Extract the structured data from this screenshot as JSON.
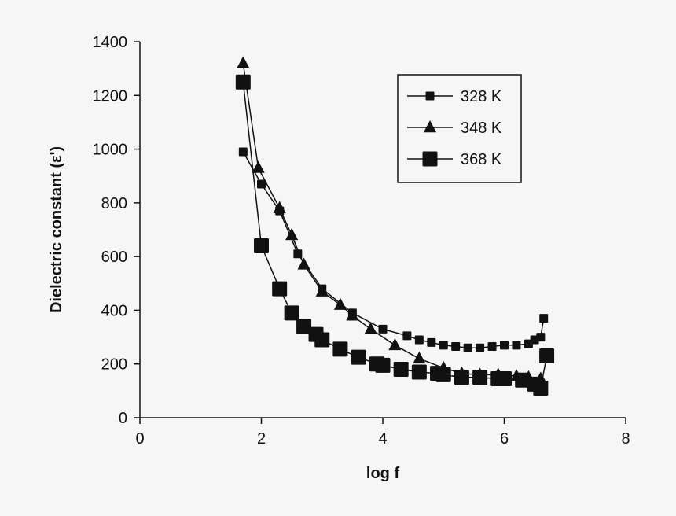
{
  "chart_data": {
    "type": "scatter",
    "title": "",
    "xlabel": "log f",
    "ylabel": "Dielectric constant (ε')",
    "xlim": [
      0,
      8
    ],
    "ylim": [
      0,
      1400
    ],
    "xticks": [
      "0",
      "2",
      "4",
      "6",
      "8"
    ],
    "yticks": [
      "0",
      "200",
      "400",
      "600",
      "800",
      "1000",
      "1200",
      "1400"
    ],
    "legend_position": "top-right",
    "grid": false,
    "series": [
      {
        "name": "328 K",
        "marker": "small-square",
        "x": [
          1.7,
          2.0,
          2.3,
          2.6,
          3.0,
          3.5,
          4.0,
          4.4,
          4.6,
          4.8,
          5.0,
          5.2,
          5.4,
          5.6,
          5.8,
          6.0,
          6.2,
          6.4,
          6.5,
          6.6,
          6.65
        ],
        "y": [
          990,
          870,
          770,
          610,
          480,
          390,
          330,
          305,
          290,
          280,
          270,
          265,
          260,
          260,
          265,
          270,
          270,
          275,
          290,
          300,
          370
        ]
      },
      {
        "name": "348 K",
        "marker": "triangle",
        "x": [
          1.7,
          1.95,
          2.3,
          2.5,
          2.7,
          3.0,
          3.3,
          3.5,
          3.8,
          4.2,
          4.6,
          5.0,
          5.3,
          5.6,
          5.9,
          6.2,
          6.4,
          6.6
        ],
        "y": [
          1320,
          930,
          780,
          680,
          570,
          470,
          420,
          380,
          330,
          270,
          220,
          185,
          165,
          160,
          160,
          155,
          150,
          145
        ]
      },
      {
        "name": "368 K",
        "marker": "large-square",
        "x": [
          1.7,
          2.0,
          2.3,
          2.5,
          2.7,
          2.9,
          3.0,
          3.3,
          3.6,
          3.9,
          4.0,
          4.3,
          4.6,
          4.9,
          5.0,
          5.3,
          5.6,
          5.9,
          6.0,
          6.3,
          6.5,
          6.6,
          6.7
        ],
        "y": [
          1250,
          640,
          480,
          390,
          340,
          310,
          290,
          255,
          225,
          200,
          195,
          180,
          170,
          165,
          160,
          150,
          150,
          145,
          145,
          140,
          125,
          110,
          230
        ]
      }
    ]
  }
}
